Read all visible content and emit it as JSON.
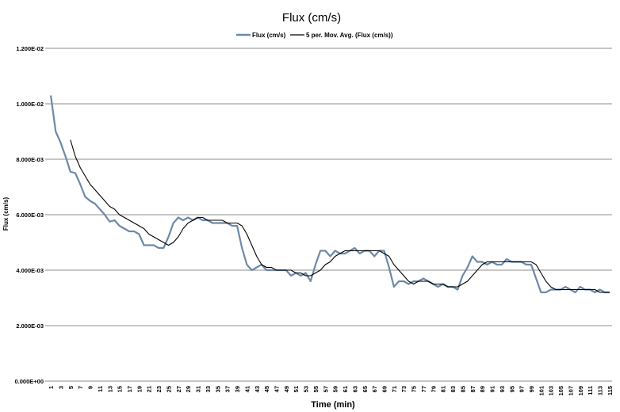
{
  "chart_data": {
    "type": "line",
    "title": "Flux (cm/s)",
    "xlabel": "Time (min)",
    "ylabel": "Flux (cm/s)",
    "ylim": [
      0,
      0.012
    ],
    "y_ticks": [
      "0.000E+00",
      "2.000E-03",
      "4.000E-03",
      "6.000E-03",
      "8.000E-03",
      "1.000E-02",
      "1.200E-02"
    ],
    "y_tick_values": [
      0,
      0.002,
      0.004,
      0.006,
      0.008,
      0.01,
      0.012
    ],
    "x_ticks": [
      "1",
      "3",
      "5",
      "7",
      "9",
      "11",
      "13",
      "15",
      "17",
      "19",
      "21",
      "23",
      "25",
      "27",
      "29",
      "31",
      "33",
      "35",
      "37",
      "39",
      "41",
      "43",
      "45",
      "47",
      "49",
      "51",
      "53",
      "55",
      "57",
      "59",
      "61",
      "63",
      "65",
      "67",
      "69",
      "71",
      "73",
      "75",
      "77",
      "79",
      "81",
      "83",
      "85",
      "87",
      "89",
      "91",
      "93",
      "95",
      "97",
      "99",
      "101",
      "103",
      "105",
      "107",
      "109",
      "111",
      "113",
      "115"
    ],
    "x_tick_values": [
      1,
      3,
      5,
      7,
      9,
      11,
      13,
      15,
      17,
      19,
      21,
      23,
      25,
      27,
      29,
      31,
      33,
      35,
      37,
      39,
      41,
      43,
      45,
      47,
      49,
      51,
      53,
      55,
      57,
      59,
      61,
      63,
      65,
      67,
      69,
      71,
      73,
      75,
      77,
      79,
      81,
      83,
      85,
      87,
      89,
      91,
      93,
      95,
      97,
      99,
      101,
      103,
      105,
      107,
      109,
      111,
      113,
      115
    ],
    "grid": "horizontal",
    "legend_position": "top",
    "colors": {
      "flux": "#6d89a8",
      "moving_avg": "#000000",
      "grid": "#8c8c8c"
    },
    "series": [
      {
        "name": "Flux (cm/s)",
        "x": [
          1,
          2,
          3,
          4,
          5,
          6,
          7,
          8,
          9,
          10,
          11,
          12,
          13,
          14,
          15,
          16,
          17,
          18,
          19,
          20,
          21,
          22,
          23,
          24,
          25,
          26,
          27,
          28,
          29,
          30,
          31,
          32,
          33,
          34,
          35,
          36,
          37,
          38,
          39,
          40,
          41,
          42,
          43,
          44,
          45,
          46,
          47,
          48,
          49,
          50,
          51,
          52,
          53,
          54,
          55,
          56,
          57,
          58,
          59,
          60,
          61,
          62,
          63,
          64,
          65,
          66,
          67,
          68,
          69,
          70,
          71,
          72,
          73,
          74,
          75,
          76,
          77,
          78,
          79,
          80,
          81,
          82,
          83,
          84,
          85,
          86,
          87,
          88,
          89,
          90,
          91,
          92,
          93,
          94,
          95,
          96,
          97,
          98,
          99,
          100,
          101,
          102,
          103,
          104,
          105,
          106,
          107,
          108,
          109,
          110,
          111,
          112,
          113,
          114,
          115
        ],
        "values": [
          0.0103,
          0.009,
          0.0086,
          0.0081,
          0.00755,
          0.0075,
          0.0071,
          0.00665,
          0.0065,
          0.0064,
          0.0062,
          0.006,
          0.00575,
          0.0058,
          0.0056,
          0.0055,
          0.0054,
          0.0054,
          0.0053,
          0.0049,
          0.0049,
          0.0049,
          0.0048,
          0.0048,
          0.0052,
          0.0057,
          0.0059,
          0.0058,
          0.0059,
          0.0058,
          0.0059,
          0.0058,
          0.0058,
          0.0057,
          0.0057,
          0.0057,
          0.0057,
          0.0056,
          0.0056,
          0.0048,
          0.0042,
          0.004,
          0.0041,
          0.0042,
          0.004,
          0.004,
          0.004,
          0.004,
          0.004,
          0.0038,
          0.0039,
          0.0038,
          0.0039,
          0.0036,
          0.0042,
          0.0047,
          0.0047,
          0.0045,
          0.0047,
          0.0046,
          0.0046,
          0.0047,
          0.0048,
          0.0046,
          0.0047,
          0.0047,
          0.0045,
          0.0047,
          0.0047,
          0.0041,
          0.0034,
          0.0036,
          0.0036,
          0.0035,
          0.0036,
          0.0036,
          0.0037,
          0.0036,
          0.0035,
          0.0034,
          0.0035,
          0.0034,
          0.0034,
          0.0033,
          0.0038,
          0.0041,
          0.0045,
          0.0043,
          0.0043,
          0.0042,
          0.0043,
          0.0042,
          0.0042,
          0.0044,
          0.0043,
          0.0043,
          0.0043,
          0.0042,
          0.0042,
          0.0037,
          0.0032,
          0.0032,
          0.0033,
          0.0033,
          0.0033,
          0.0034,
          0.0033,
          0.0032,
          0.0034,
          0.0033,
          0.0033,
          0.0032,
          0.0033,
          0.0032,
          0.0032
        ]
      },
      {
        "name": "5 per. Mov. Avg. (Flux (cm/s))",
        "x": [
          5,
          6,
          7,
          8,
          9,
          10,
          11,
          12,
          13,
          14,
          15,
          16,
          17,
          18,
          19,
          20,
          21,
          22,
          23,
          24,
          25,
          26,
          27,
          28,
          29,
          30,
          31,
          32,
          33,
          34,
          35,
          36,
          37,
          38,
          39,
          40,
          41,
          42,
          43,
          44,
          45,
          46,
          47,
          48,
          49,
          50,
          51,
          52,
          53,
          54,
          55,
          56,
          57,
          58,
          59,
          60,
          61,
          62,
          63,
          64,
          65,
          66,
          67,
          68,
          69,
          70,
          71,
          72,
          73,
          74,
          75,
          76,
          77,
          78,
          79,
          80,
          81,
          82,
          83,
          84,
          85,
          86,
          87,
          88,
          89,
          90,
          91,
          92,
          93,
          94,
          95,
          96,
          97,
          98,
          99,
          100,
          101,
          102,
          103,
          104,
          105,
          106,
          107,
          108,
          109,
          110,
          111,
          112,
          113,
          114,
          115
        ],
        "values": [
          0.0087,
          0.0081,
          0.0077,
          0.0074,
          0.0071,
          0.0069,
          0.0067,
          0.0065,
          0.0063,
          0.0062,
          0.006,
          0.0059,
          0.0058,
          0.0057,
          0.0056,
          0.0055,
          0.0053,
          0.0052,
          0.0051,
          0.005,
          0.0049,
          0.005,
          0.0052,
          0.0055,
          0.0057,
          0.0058,
          0.0059,
          0.0059,
          0.0058,
          0.0058,
          0.0058,
          0.0058,
          0.0057,
          0.0057,
          0.0057,
          0.0056,
          0.0053,
          0.0049,
          0.0045,
          0.0042,
          0.0041,
          0.0041,
          0.004,
          0.004,
          0.004,
          0.004,
          0.0039,
          0.0039,
          0.0038,
          0.0038,
          0.0039,
          0.004,
          0.0042,
          0.0043,
          0.0045,
          0.0046,
          0.0047,
          0.0047,
          0.0047,
          0.0047,
          0.0047,
          0.0047,
          0.0047,
          0.0047,
          0.0046,
          0.0045,
          0.0042,
          0.004,
          0.0038,
          0.0036,
          0.0035,
          0.0036,
          0.0036,
          0.0036,
          0.0035,
          0.0035,
          0.0035,
          0.0034,
          0.0034,
          0.0034,
          0.0035,
          0.0036,
          0.0038,
          0.004,
          0.0042,
          0.0043,
          0.0043,
          0.0043,
          0.0043,
          0.0043,
          0.0043,
          0.0043,
          0.0043,
          0.0043,
          0.0043,
          0.0042,
          0.0039,
          0.0036,
          0.0034,
          0.0033,
          0.0033,
          0.0033,
          0.0033,
          0.0033,
          0.0033,
          0.0033,
          0.0033,
          0.0033,
          0.0032,
          0.0032,
          0.0032
        ]
      }
    ]
  }
}
